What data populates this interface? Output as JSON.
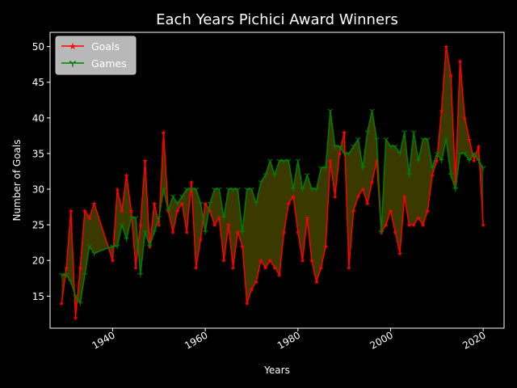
{
  "chart_data": {
    "type": "line",
    "title": "Each Years Pichici Award Winners",
    "xlabel": "Years",
    "ylabel": "Number of Goals",
    "xlim": [
      1926.5,
      2024.5
    ],
    "ylim": [
      10.5,
      52
    ],
    "x_ticks": [
      1940,
      1960,
      1980,
      2000,
      2020
    ],
    "y_ticks": [
      15,
      20,
      25,
      30,
      35,
      40,
      45,
      50
    ],
    "grid": false,
    "legend_position": "top-left",
    "fill_between": true,
    "fill_color": "#3a3a00",
    "series": [
      {
        "name": "Goals",
        "color": "#ff0000",
        "marker": "*",
        "x": [
          1929,
          1930,
          1931,
          1932,
          1933,
          1934,
          1935,
          1936,
          1940,
          1941,
          1942,
          1943,
          1944,
          1945,
          1946,
          1947,
          1948,
          1949,
          1950,
          1951,
          1952,
          1953,
          1954,
          1955,
          1956,
          1957,
          1958,
          1959,
          1960,
          1961,
          1962,
          1963,
          1964,
          1965,
          1966,
          1967,
          1968,
          1969,
          1970,
          1971,
          1972,
          1973,
          1974,
          1975,
          1976,
          1977,
          1978,
          1979,
          1980,
          1981,
          1982,
          1983,
          1984,
          1985,
          1986,
          1987,
          1988,
          1989,
          1990,
          1991,
          1992,
          1993,
          1994,
          1995,
          1996,
          1997,
          1998,
          1999,
          2000,
          2001,
          2002,
          2003,
          2004,
          2005,
          2006,
          2007,
          2008,
          2009,
          2010,
          2011,
          2012,
          2013,
          2014,
          2015,
          2016,
          2017,
          2018,
          2019,
          2020
        ],
        "y": [
          14,
          19,
          27,
          12,
          19,
          27,
          26,
          28,
          20,
          30,
          27,
          32,
          27,
          19,
          25,
          34,
          22,
          28,
          25,
          38,
          27,
          24,
          27,
          28,
          24,
          31,
          19,
          23,
          28,
          27,
          25,
          26,
          20,
          25,
          19,
          24,
          22,
          14,
          16,
          17,
          20,
          19,
          20,
          19,
          18,
          24,
          28,
          29,
          24,
          20,
          26,
          20,
          17,
          19,
          22,
          34,
          29,
          35,
          38,
          19,
          27,
          29,
          30,
          28,
          31,
          34,
          24,
          25,
          27,
          24,
          21,
          29,
          25,
          25,
          26,
          25,
          27,
          32,
          34,
          41,
          50,
          46,
          31,
          48,
          40,
          37,
          34,
          36,
          25
        ]
      },
      {
        "name": "Games",
        "color": "#008000",
        "marker": "1",
        "x": [
          1929,
          1930,
          1931,
          1932,
          1933,
          1934,
          1935,
          1936,
          1940,
          1941,
          1942,
          1943,
          1944,
          1945,
          1946,
          1947,
          1948,
          1949,
          1950,
          1951,
          1952,
          1953,
          1954,
          1955,
          1956,
          1957,
          1958,
          1959,
          1960,
          1961,
          1962,
          1963,
          1964,
          1965,
          1966,
          1967,
          1968,
          1969,
          1970,
          1971,
          1972,
          1973,
          1974,
          1975,
          1976,
          1977,
          1978,
          1979,
          1980,
          1981,
          1982,
          1983,
          1984,
          1985,
          1986,
          1987,
          1988,
          1989,
          1990,
          1991,
          1992,
          1993,
          1994,
          1995,
          1996,
          1997,
          1998,
          1999,
          2000,
          2001,
          2002,
          2003,
          2004,
          2005,
          2006,
          2007,
          2008,
          2009,
          2010,
          2011,
          2012,
          2013,
          2014,
          2015,
          2016,
          2017,
          2018,
          2019,
          2020
        ],
        "y": [
          18,
          18,
          17,
          15,
          14,
          18,
          22,
          21,
          22,
          22,
          25,
          23,
          26,
          26,
          18,
          24,
          22,
          24,
          26,
          30,
          27,
          29,
          28,
          29,
          30,
          30,
          30,
          28,
          24,
          28,
          30,
          30,
          26,
          30,
          30,
          30,
          24,
          30,
          30,
          28,
          31,
          32,
          34,
          32,
          34,
          34,
          34,
          30,
          34,
          30,
          32,
          30,
          30,
          33,
          33,
          41,
          36,
          36,
          35,
          35,
          36,
          37,
          33,
          38,
          41,
          37,
          24,
          37,
          36,
          36,
          35,
          38,
          32,
          38,
          34,
          37,
          37,
          33,
          35,
          34,
          37,
          32,
          30,
          35,
          35,
          34,
          35,
          34,
          33
        ]
      }
    ]
  }
}
